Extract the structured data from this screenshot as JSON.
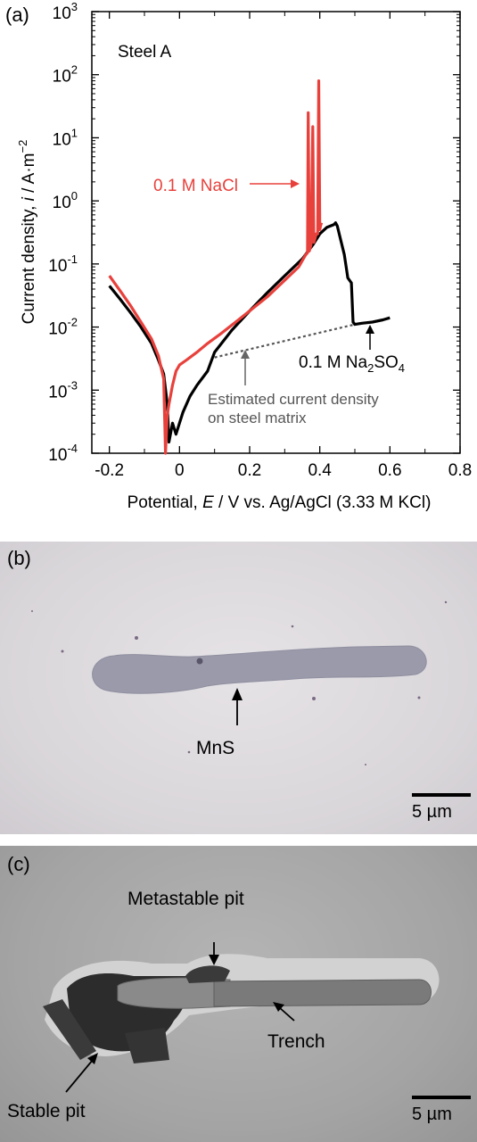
{
  "chart_data": {
    "type": "line",
    "panel_label": "(a)",
    "inset_label": "Steel A",
    "xlabel_parts": [
      "Potential, ",
      "E",
      " / V vs. Ag/AgCl (3.33",
      "M KCl)"
    ],
    "ylabel_parts": [
      "Current density, ",
      "i",
      " / A·m",
      "−2"
    ],
    "xlim": [
      -0.25,
      0.8
    ],
    "x_ticks": [
      -0.2,
      0,
      0.2,
      0.4,
      0.6,
      0.8
    ],
    "x_tick_labels": [
      "-0.2",
      "0",
      "0.2",
      "0.4",
      "0.6",
      "0.8"
    ],
    "y_scale": "log",
    "ylim": [
      0.0001,
      1000
    ],
    "y_ticks": [
      {
        "value": 0.0001,
        "base": "10",
        "exp": "-4"
      },
      {
        "value": 0.001,
        "base": "10",
        "exp": "-3"
      },
      {
        "value": 0.01,
        "base": "10",
        "exp": "-2"
      },
      {
        "value": 0.1,
        "base": "10",
        "exp": "-1"
      },
      {
        "value": 1,
        "base": "10",
        "exp": "0"
      },
      {
        "value": 10,
        "base": "10",
        "exp": "1"
      },
      {
        "value": 100,
        "base": "10",
        "exp": "2"
      },
      {
        "value": 1000,
        "base": "10",
        "exp": "3"
      }
    ],
    "grid": false,
    "series": [
      {
        "name": "0.1 M Na2SO4",
        "color": "#000000",
        "x": [
          -0.2,
          -0.17,
          -0.14,
          -0.11,
          -0.08,
          -0.06,
          -0.045,
          -0.035,
          -0.03,
          -0.02,
          -0.01,
          0.0,
          0.01,
          0.03,
          0.05,
          0.08,
          0.1,
          0.15,
          0.2,
          0.25,
          0.3,
          0.35,
          0.38,
          0.4,
          0.42,
          0.44,
          0.445,
          0.45,
          0.47,
          0.48,
          0.49,
          0.495,
          0.5,
          0.52,
          0.55,
          0.58,
          0.6
        ],
        "y": [
          0.045,
          0.028,
          0.017,
          0.01,
          0.0055,
          0.003,
          0.0018,
          0.0006,
          0.00015,
          0.0003,
          0.0002,
          0.0003,
          0.00045,
          0.0008,
          0.0012,
          0.002,
          0.004,
          0.009,
          0.018,
          0.035,
          0.065,
          0.12,
          0.2,
          0.3,
          0.38,
          0.42,
          0.45,
          0.4,
          0.14,
          0.06,
          0.05,
          0.012,
          0.011,
          0.0115,
          0.012,
          0.013,
          0.014
        ]
      },
      {
        "name": "0.1 M NaCl",
        "color": "#e8413c",
        "x": [
          -0.2,
          -0.17,
          -0.14,
          -0.11,
          -0.08,
          -0.06,
          -0.045,
          -0.04,
          -0.035,
          -0.03,
          -0.02,
          -0.01,
          0.0,
          0.02,
          0.05,
          0.08,
          0.12,
          0.16,
          0.2,
          0.25,
          0.3,
          0.34,
          0.36,
          0.365,
          0.367,
          0.37,
          0.375,
          0.38,
          0.383,
          0.386,
          0.39,
          0.394,
          0.397,
          0.4,
          0.402,
          0.405
        ],
        "y": [
          0.065,
          0.038,
          0.022,
          0.012,
          0.0065,
          0.0035,
          0.0015,
          0.0001,
          0.0004,
          0.0006,
          0.0012,
          0.002,
          0.0025,
          0.003,
          0.004,
          0.0055,
          0.008,
          0.012,
          0.018,
          0.03,
          0.055,
          0.09,
          0.14,
          0.15,
          25,
          0.16,
          0.2,
          15,
          0.22,
          0.25,
          0.3,
          0.3,
          80,
          0.35,
          0.4,
          0.45
        ]
      }
    ],
    "matrix_estimate": {
      "x": [
        0.1,
        0.5
      ],
      "y": [
        0.0033,
        0.011
      ],
      "color": "#555555"
    },
    "annotations": {
      "nacl": {
        "text": "0.1 M NaCl",
        "color": "#e8413c"
      },
      "na2so4": {
        "pre": "0.1 M Na",
        "sub1": "2",
        "mid": "SO",
        "sub2": "4"
      },
      "estimate_line1": "Estimated current density",
      "estimate_line2": "on steel matrix"
    }
  },
  "panel_b": {
    "label": "(b)",
    "callout": "MnS",
    "scale_bar": "5 µm"
  },
  "panel_c": {
    "label": "(c)",
    "callouts": {
      "metastable_pit": "Metastable pit",
      "trench": "Trench",
      "stable_pit": "Stable pit"
    },
    "scale_bar": "5 µm"
  }
}
